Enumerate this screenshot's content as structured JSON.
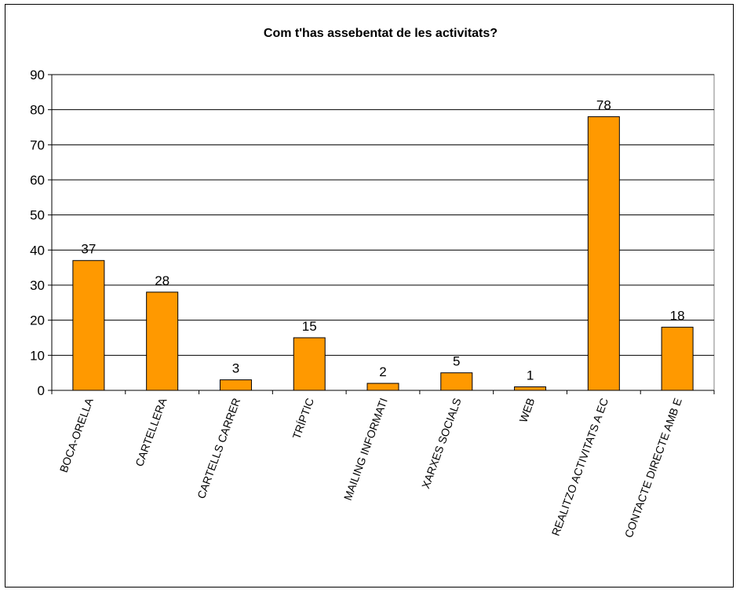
{
  "chart_data": {
    "type": "bar",
    "title": "Com t'has assebentat de les activitats?",
    "xlabel": "",
    "ylabel": "",
    "ylim": [
      0,
      90
    ],
    "yticks": [
      0,
      10,
      20,
      30,
      40,
      50,
      60,
      70,
      80,
      90
    ],
    "grid": true,
    "legend": "none",
    "bar_color": "#FF9900",
    "categories": [
      "BOCA-ORELLA",
      "CARTELLERA",
      "CARTELLS CARRER",
      "TRÍPTIC",
      "MAILING INFORMATI",
      "XARXES SOCIALS",
      "WEB",
      "REALITZO ACTIVITATS A EC",
      "CONTACTE DIRECTE AMB E"
    ],
    "values": [
      37,
      28,
      3,
      15,
      2,
      5,
      1,
      78,
      18
    ]
  }
}
